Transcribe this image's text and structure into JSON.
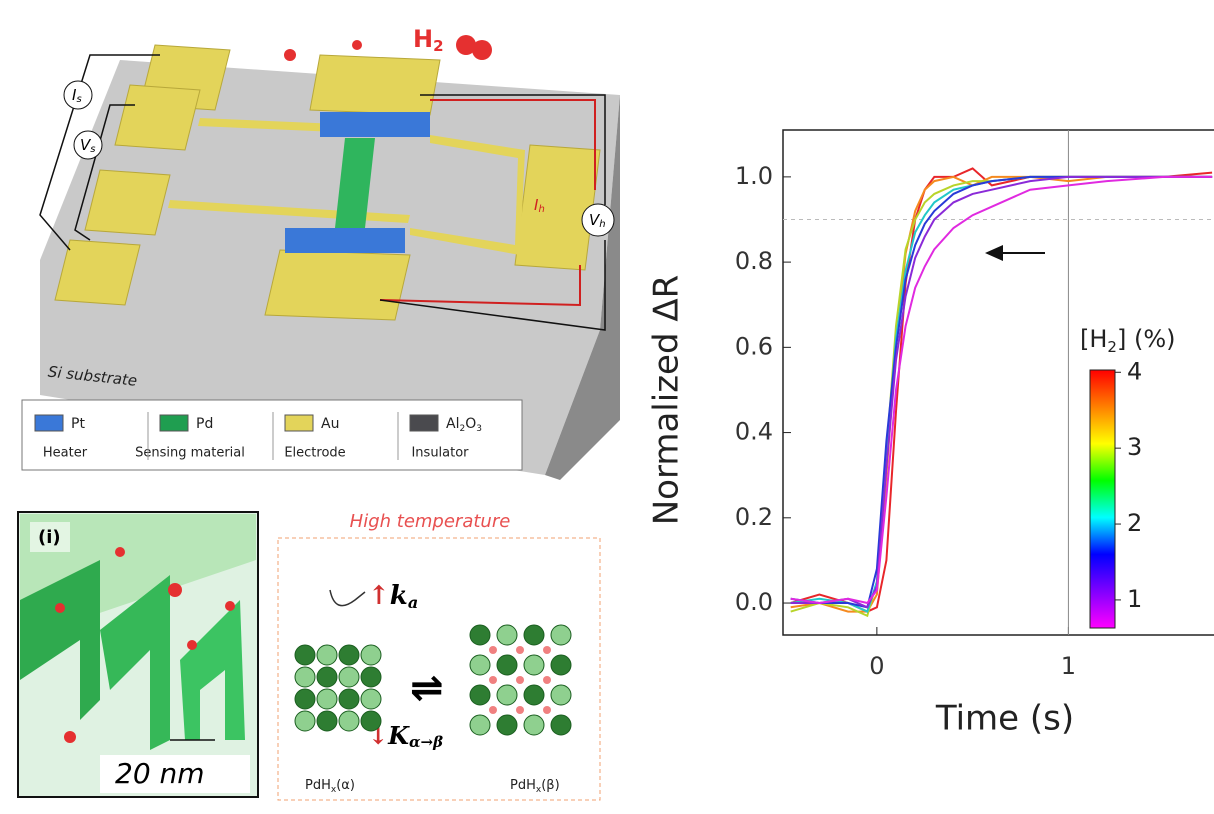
{
  "device": {
    "h2": {
      "text": "H",
      "sub": "2"
    },
    "is": {
      "text": "I",
      "sub": "s"
    },
    "vs": {
      "text": "V",
      "sub": "s"
    },
    "vh": {
      "text": "V",
      "sub": "h"
    },
    "ih": {
      "text": "I",
      "sub": "h"
    },
    "substrate": "Si substrate",
    "legend": [
      {
        "name": "Pt",
        "role": "Heater",
        "color": "#3a78d8"
      },
      {
        "name": "Pd",
        "role": "Sensing material",
        "color": "#1f9e50"
      },
      {
        "name": "Au",
        "role": "Electrode",
        "color": "#e3d45a"
      },
      {
        "name": "Al",
        "sub": "2",
        "name2": "O",
        "sub2": "3",
        "role": "Insulator",
        "color": "#4a4a4e"
      }
    ]
  },
  "nanostructure": {
    "panel": "(i)",
    "width": "20 nm",
    "heading": "High temperature",
    "ka": {
      "text": "k",
      "sub": "a"
    },
    "kab": {
      "text": "K",
      "sub": "α→β"
    },
    "alpha": {
      "text": "PdH",
      "sub": "x",
      "rest": "(α)"
    },
    "beta": {
      "text": "PdH",
      "sub": "x",
      "rest": "(β)"
    }
  },
  "chart_data": {
    "type": "line",
    "title": null,
    "xlabel": "Time (s)",
    "ylabel": "Normalized ΔR",
    "x": [
      -0.45,
      -0.3,
      -0.15,
      -0.05,
      0,
      0.05,
      0.1,
      0.15,
      0.2,
      0.25,
      0.3,
      0.4,
      0.5,
      0.6,
      0.8,
      1.0,
      1.2,
      1.5,
      1.75
    ],
    "series": [
      {
        "color": "#e8262a",
        "values": [
          0.0,
          0.02,
          0.0,
          -0.02,
          -0.01,
          0.1,
          0.45,
          0.75,
          0.9,
          0.97,
          1.0,
          1.0,
          1.02,
          0.98,
          1.0,
          1.0,
          1.0,
          1.0,
          1.01
        ]
      },
      {
        "color": "#f58a1f",
        "values": [
          -0.01,
          0.0,
          -0.02,
          -0.02,
          0.02,
          0.3,
          0.6,
          0.82,
          0.92,
          0.97,
          0.99,
          1.0,
          0.98,
          1.0,
          1.0,
          0.99,
          1.0,
          1.0,
          1.0
        ]
      },
      {
        "color": "#b8d42a",
        "values": [
          -0.02,
          0.0,
          -0.01,
          -0.03,
          0.05,
          0.35,
          0.65,
          0.83,
          0.9,
          0.94,
          0.96,
          0.98,
          0.99,
          0.99,
          1.0,
          1.0,
          1.0,
          1.0,
          1.0
        ]
      },
      {
        "color": "#22c8c8",
        "values": [
          0.0,
          0.01,
          0.0,
          -0.02,
          0.05,
          0.35,
          0.62,
          0.78,
          0.87,
          0.91,
          0.94,
          0.97,
          0.98,
          0.99,
          1.0,
          1.0,
          1.0,
          1.0,
          1.0
        ]
      },
      {
        "color": "#2a3ad8",
        "values": [
          0.01,
          0.0,
          0.0,
          -0.01,
          0.08,
          0.38,
          0.6,
          0.76,
          0.84,
          0.89,
          0.92,
          0.96,
          0.98,
          0.99,
          1.0,
          1.0,
          1.0,
          1.0,
          1.0
        ]
      },
      {
        "color": "#8a2ad8",
        "values": [
          0.0,
          0.0,
          0.01,
          -0.01,
          0.04,
          0.32,
          0.57,
          0.72,
          0.81,
          0.86,
          0.9,
          0.94,
          0.96,
          0.97,
          0.99,
          1.0,
          1.0,
          1.0,
          1.0
        ]
      },
      {
        "color": "#e02ae0",
        "values": [
          0.01,
          0.0,
          0.01,
          0.0,
          0.03,
          0.25,
          0.5,
          0.65,
          0.74,
          0.79,
          0.83,
          0.88,
          0.91,
          0.93,
          0.97,
          0.98,
          0.99,
          1.0,
          1.0
        ]
      }
    ],
    "xlim": [
      -0.49,
      1.76
    ],
    "ylim": [
      -0.075,
      1.11
    ],
    "xticks": [
      0,
      1
    ],
    "yticks": [
      {
        "value": 0,
        "label": "0.0"
      },
      {
        "value": 0.2,
        "label": "0.2"
      },
      {
        "value": 0.4,
        "label": "0.4"
      },
      {
        "value": 0.6,
        "label": "0.6"
      },
      {
        "value": 0.8,
        "label": "0.8"
      },
      {
        "value": 1,
        "label": "1.0"
      }
    ],
    "hline": 0.9,
    "vline": 1,
    "colorbar": {
      "label": {
        "text": "[H",
        "sub": "2",
        "rest": "] (%)"
      },
      "lim": [
        0.63,
        4.03
      ],
      "ticks": [
        1,
        2,
        3,
        4
      ],
      "colors": [
        "#ff00ff",
        "#8000ff",
        "#0000ff",
        "#00ffff",
        "#00ff00",
        "#ffff00",
        "#ff8000",
        "#ff0000"
      ]
    }
  }
}
